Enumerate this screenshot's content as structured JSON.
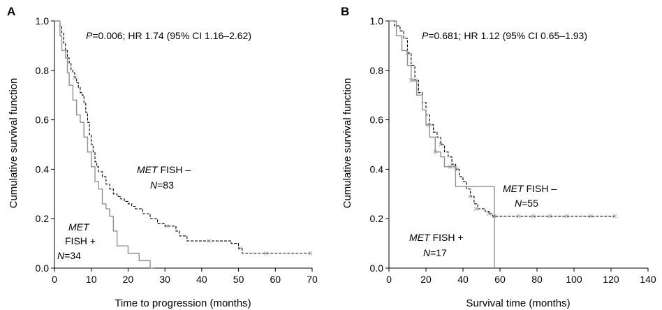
{
  "chart_data": [
    {
      "type": "line",
      "panel_label": "A",
      "xlabel": "Time to progression (months)",
      "ylabel": "Cumulative survival function",
      "xlim": [
        0,
        70
      ],
      "ylim": [
        0,
        1.0
      ],
      "xticks": [
        "0",
        "10",
        "20",
        "30",
        "40",
        "50",
        "60",
        "70"
      ],
      "yticks": [
        "0.0",
        "0.2",
        "0.4",
        "0.6",
        "0.8",
        "1.0"
      ],
      "stat_p_label": "P",
      "stat_text": "=0.006; HR 1.74 (95% CI 1.16–2.62)",
      "series": [
        {
          "label_gene": "MET",
          "label_rest": "FISH –",
          "n_label": "N",
          "n_value": "=83",
          "color": "#000000",
          "dash": "dashed",
          "x": [
            0,
            1.5,
            2,
            2.5,
            3,
            3.5,
            4,
            4.5,
            5,
            5.5,
            6,
            6.5,
            7,
            7.5,
            8,
            8.5,
            9,
            9.5,
            10,
            10.5,
            11,
            11.5,
            12,
            13,
            14,
            15,
            16,
            17,
            18,
            19,
            20,
            21,
            22,
            24,
            26,
            28,
            30,
            32,
            33,
            34,
            36,
            40,
            44,
            48,
            50,
            51,
            52,
            58,
            70
          ],
          "y": [
            1.0,
            0.98,
            0.95,
            0.91,
            0.88,
            0.85,
            0.83,
            0.8,
            0.79,
            0.77,
            0.75,
            0.73,
            0.71,
            0.7,
            0.67,
            0.63,
            0.59,
            0.54,
            0.5,
            0.47,
            0.43,
            0.41,
            0.39,
            0.37,
            0.34,
            0.32,
            0.3,
            0.29,
            0.28,
            0.27,
            0.26,
            0.25,
            0.24,
            0.22,
            0.2,
            0.18,
            0.17,
            0.17,
            0.15,
            0.13,
            0.11,
            0.11,
            0.11,
            0.1,
            0.08,
            0.06,
            0.06,
            0.06,
            0.06
          ],
          "censored_x": [
            5.5,
            30.5,
            42,
            50.5,
            57.5,
            69.5
          ],
          "censored_y": [
            0.77,
            0.17,
            0.11,
            0.08,
            0.06,
            0.06
          ]
        },
        {
          "label_gene": "MET",
          "label_rest": "FISH +",
          "n_label": "N",
          "n_value": "=34",
          "color": "#909090",
          "dash": "solid",
          "x": [
            0,
            1.5,
            2,
            3,
            3.5,
            4,
            5,
            6,
            7,
            8,
            9,
            10,
            11,
            12,
            13,
            14,
            15,
            16,
            17,
            20,
            23,
            26,
            27
          ],
          "y": [
            1.0,
            0.94,
            0.88,
            0.85,
            0.79,
            0.74,
            0.68,
            0.62,
            0.59,
            0.53,
            0.47,
            0.41,
            0.35,
            0.32,
            0.26,
            0.24,
            0.21,
            0.15,
            0.09,
            0.06,
            0.03,
            0.0,
            0.0
          ],
          "censored_x": [],
          "censored_y": []
        }
      ]
    },
    {
      "type": "line",
      "panel_label": "B",
      "xlabel": "Survival time (months)",
      "ylabel": "Cumulative survival function",
      "xlim": [
        0,
        140
      ],
      "ylim": [
        0,
        1.0
      ],
      "xticks": [
        "0",
        "20",
        "40",
        "60",
        "80",
        "100",
        "120",
        "140"
      ],
      "yticks": [
        "0.0",
        "0.2",
        "0.4",
        "0.6",
        "0.8",
        "1.0"
      ],
      "stat_p_label": "P",
      "stat_text": "=0.681; HR 1.12 (95% CI 0.65–1.93)",
      "series": [
        {
          "label_gene": "MET",
          "label_rest": "FISH –",
          "n_label": "N",
          "n_value": "=55",
          "color": "#000000",
          "dash": "dashed",
          "x": [
            0,
            3,
            6,
            8,
            10,
            12,
            14,
            16,
            18,
            20,
            22,
            24,
            26,
            28,
            30,
            32,
            34,
            36,
            38,
            40,
            42,
            44,
            46,
            48,
            50,
            52,
            54,
            56,
            122
          ],
          "y": [
            1.0,
            0.98,
            0.96,
            0.93,
            0.87,
            0.82,
            0.76,
            0.71,
            0.67,
            0.62,
            0.58,
            0.55,
            0.53,
            0.5,
            0.47,
            0.45,
            0.42,
            0.4,
            0.37,
            0.35,
            0.32,
            0.29,
            0.26,
            0.24,
            0.24,
            0.23,
            0.22,
            0.21,
            0.21
          ],
          "censored_x": [
            10,
            14,
            22,
            28,
            34,
            37,
            44,
            47,
            54,
            57,
            70,
            78,
            87,
            96,
            109,
            122
          ],
          "censored_y": [
            0.87,
            0.76,
            0.58,
            0.5,
            0.42,
            0.4,
            0.29,
            0.24,
            0.22,
            0.21,
            0.21,
            0.21,
            0.21,
            0.21,
            0.21,
            0.21
          ]
        },
        {
          "label_gene": "MET",
          "label_rest": "FISH +",
          "n_label": "N",
          "n_value": "=17",
          "color": "#909090",
          "dash": "solid",
          "x": [
            0,
            4,
            7,
            10,
            12,
            15,
            18,
            20,
            22,
            25,
            28,
            30,
            33,
            36,
            56,
            57
          ],
          "y": [
            1.0,
            0.94,
            0.88,
            0.82,
            0.76,
            0.7,
            0.64,
            0.58,
            0.53,
            0.47,
            0.45,
            0.41,
            0.41,
            0.33,
            0.33,
            0.0
          ],
          "censored_x": [
            12,
            21,
            25,
            33,
            36
          ],
          "censored_y": [
            0.76,
            0.58,
            0.47,
            0.41,
            0.41
          ]
        }
      ]
    }
  ]
}
